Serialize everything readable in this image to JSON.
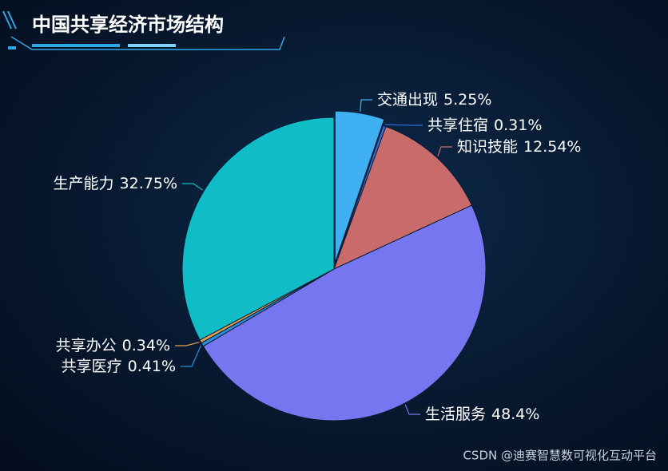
{
  "chart_data": {
    "type": "pie",
    "title": "中国共享经济市场结构",
    "categories": [
      "交通出现",
      "共享住宿",
      "知识技能",
      "生活服务",
      "共享医疗",
      "共享办公",
      "生产能力"
    ],
    "values": [
      5.25,
      0.31,
      12.54,
      48.4,
      0.41,
      0.34,
      32.75
    ],
    "value_labels": [
      "5.25%",
      "0.31%",
      "12.54%",
      "48.4%",
      "0.41%",
      "0.34%",
      "32.75%"
    ],
    "colors": [
      "#3fb1f2",
      "#2f6fd6",
      "#c96b6b",
      "#7677f0",
      "#2a8ed8",
      "#e3a24f",
      "#10bdc7"
    ]
  },
  "watermark": "CSDN @迪赛智慧数可视化互动平台"
}
